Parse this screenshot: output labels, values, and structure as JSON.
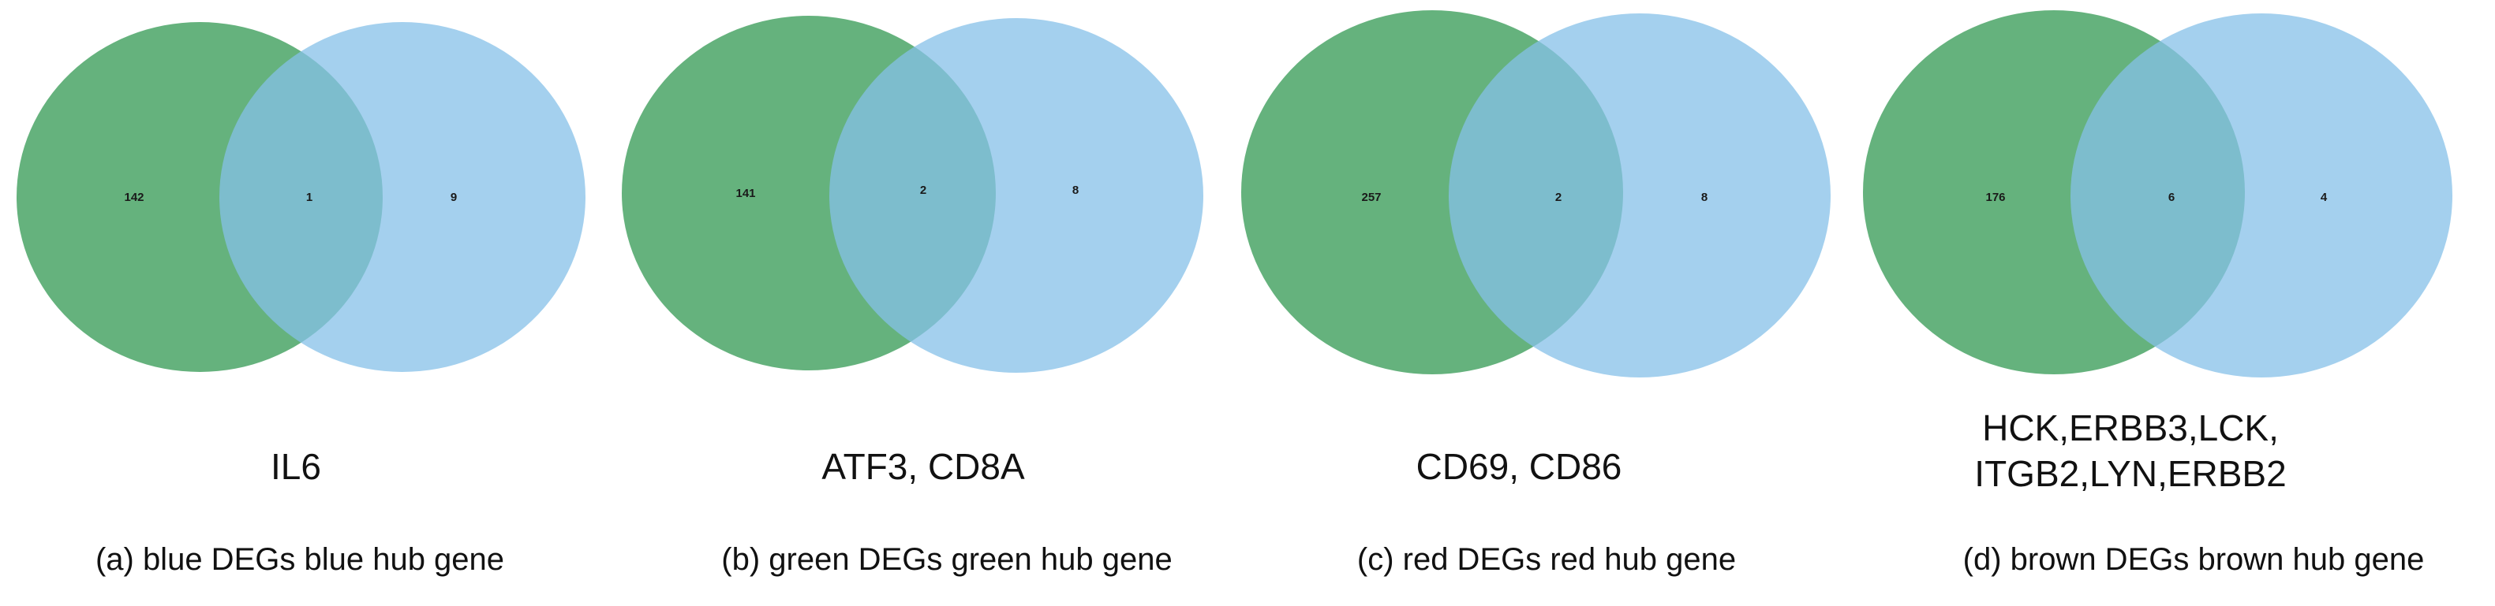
{
  "colors": {
    "left_circle": "#3f9f5c",
    "right_circle": "#86c0e8"
  },
  "panels": [
    {
      "caption": "(a) blue DEGs blue hub gene",
      "genes": [
        "IL6"
      ],
      "counts": {
        "left": "142",
        "overlap": "1",
        "right": "9"
      }
    },
    {
      "caption": "(b) green DEGs green hub gene",
      "genes": [
        "ATF3, CD8A"
      ],
      "counts": {
        "left": "141",
        "overlap": "2",
        "right": "8"
      }
    },
    {
      "caption": "(c) red DEGs red hub gene",
      "genes": [
        "CD69, CD86"
      ],
      "counts": {
        "left": "257",
        "overlap": "2",
        "right": "8"
      }
    },
    {
      "caption": "(d) brown DEGs brown hub gene",
      "genes": [
        "HCK,ERBB3,LCK,",
        "ITGB2,LYN,ERBB2"
      ],
      "counts": {
        "left": "176",
        "overlap": "6",
        "right": "4"
      }
    }
  ]
}
